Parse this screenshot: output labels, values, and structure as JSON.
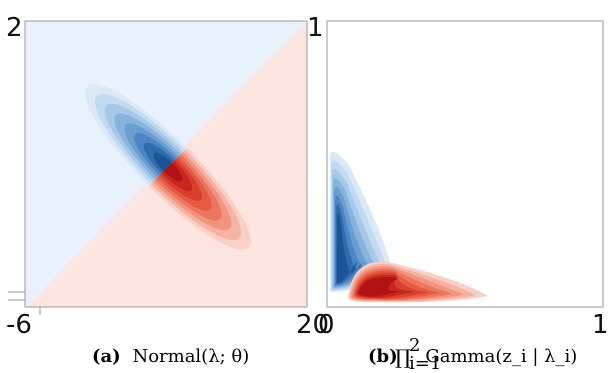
{
  "chart_data": [
    {
      "type": "heatmap",
      "title": "",
      "caption_label": "(a)",
      "caption_text": "Normal(λ; θ)",
      "xlabel": "",
      "ylabel": "",
      "xlim": [
        -6,
        20
      ],
      "ylim": [
        null,
        2
      ],
      "x_ticks": [
        "-6",
        "20"
      ],
      "y_ticks": [
        "2"
      ],
      "background_regions": [
        {
          "side": "upper-left",
          "color": "#e8f1fc"
        },
        {
          "side": "lower-right",
          "color": "#fde6df"
        }
      ],
      "contour": {
        "shape": "elongated ellipse oriented from upper-left to lower-right",
        "blue_half": "upper-left",
        "red_half": "lower-right",
        "levels": 8
      }
    },
    {
      "type": "heatmap",
      "title": "",
      "caption_label": "(b)",
      "caption_text": "∏ Gamma(z_i | λ_i)",
      "caption_product_sup": "2",
      "caption_product_sub": "i=1",
      "xlabel": "",
      "ylabel": "",
      "x_ticks": [
        "0",
        "1"
      ],
      "y_ticks": [
        "1"
      ],
      "background": "#ffffff",
      "contour": {
        "shape": "curved L-shaped density near both axes",
        "blue_arm": "vertical, along y-axis",
        "red_arm": "horizontal, along x-axis",
        "levels": 8
      }
    }
  ],
  "colors": {
    "blues": [
      "#dbe9f7",
      "#c3dbf0",
      "#a6c9e8",
      "#87b4dd",
      "#6a9ed1",
      "#4c86c2",
      "#2f6cae",
      "#1a5597"
    ],
    "reds": [
      "#f9d0c5",
      "#f6b3a2",
      "#f29580",
      "#ec775f",
      "#e45a43",
      "#d93f2d",
      "#c9261c",
      "#b01216"
    ],
    "axis": "#9a9a9a"
  }
}
